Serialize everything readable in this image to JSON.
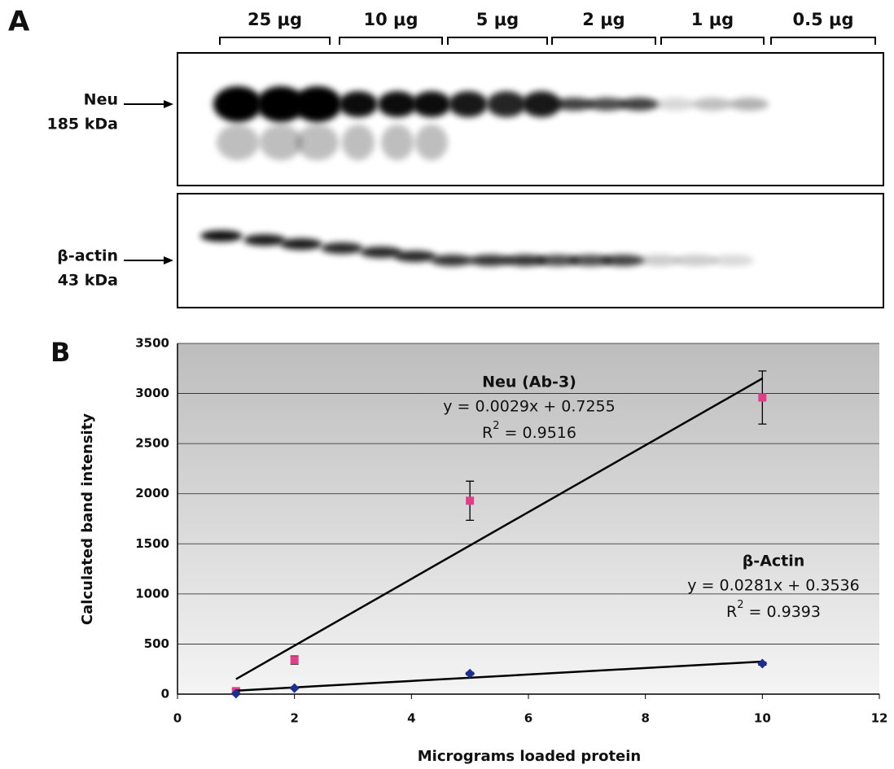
{
  "panel_a": {
    "label": "A",
    "lane_groups": [
      "25 μg",
      "10 μg",
      "5 μg",
      "2 μg",
      "1 μg",
      "0.5 μg"
    ],
    "blots": [
      {
        "name": "Neu",
        "size": "185 kDa"
      },
      {
        "name": "β-actin",
        "size": "43 kDa"
      }
    ]
  },
  "chart_data": {
    "type": "scatter",
    "panel_label": "B",
    "x_label": "Micrograms loaded protein",
    "y_label": "Calculated band intensity",
    "xlim": [
      0,
      12
    ],
    "xticks": [
      0,
      2,
      4,
      6,
      8,
      10,
      12
    ],
    "ylim": [
      0,
      3500
    ],
    "yticks": [
      0,
      500,
      1000,
      1500,
      2000,
      2500,
      3000,
      3500
    ],
    "grid": true,
    "series": [
      {
        "name": "Neu (Ab-3)",
        "color": "#e0408a",
        "marker": "square",
        "x": [
          1,
          2,
          5,
          10
        ],
        "values": [
          30,
          340,
          1930,
          2960
        ],
        "errors": [
          20,
          40,
          195,
          265
        ],
        "trendline": {
          "x": [
            1,
            10
          ],
          "y": [
            150,
            3150
          ]
        },
        "equation": "y = 0.0029x + 0.7255",
        "r2": {
          "base": "R",
          "sup": "2",
          "rest": " = 0.9516"
        }
      },
      {
        "name": "β-Actin",
        "color": "#1a2f8f",
        "marker": "diamond",
        "x": [
          1,
          2,
          5,
          10
        ],
        "values": [
          5,
          60,
          205,
          305
        ],
        "errors": [
          5,
          8,
          12,
          15
        ],
        "trendline": {
          "x": [
            1,
            10
          ],
          "y": [
            35,
            325
          ]
        },
        "equation": "y = 0.0281x + 0.3536",
        "r2": {
          "base": "R",
          "sup": "2",
          "rest": " = 0.9393"
        }
      }
    ]
  }
}
